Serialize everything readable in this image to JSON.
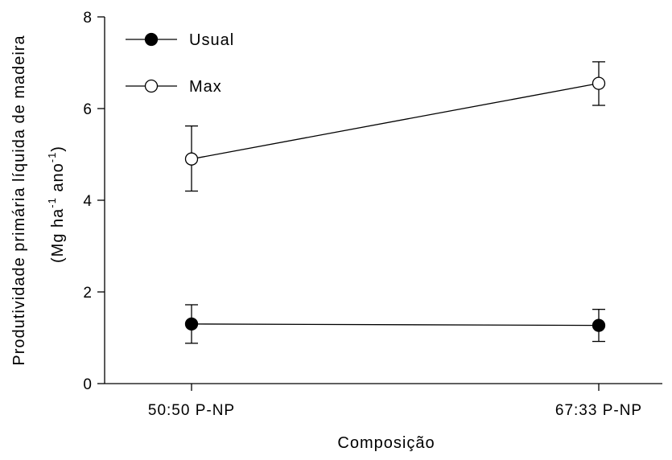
{
  "chart_data": {
    "type": "line",
    "categories": [
      "50:50 P-NP",
      "67:33 P-NP"
    ],
    "xlabel": "Composição",
    "ylabel_line1": "Produtividade primária líquida de madeira",
    "ylabel_line2": {
      "open": "(Mg ha",
      "sup1": "-1",
      "mid": " ano",
      "sup2": "-1",
      "close": ")"
    },
    "ylim": [
      0,
      8
    ],
    "yticks": [
      "0",
      "2",
      "4",
      "6",
      "8"
    ],
    "legend_position": "top-left",
    "series": [
      {
        "name": "Usual",
        "marker": "filled-circle",
        "values": [
          1.3,
          1.27
        ],
        "error_low": [
          0.88,
          0.92
        ],
        "error_high": [
          1.72,
          1.62
        ]
      },
      {
        "name": "Max",
        "marker": "open-circle",
        "values": [
          4.9,
          6.55
        ],
        "error_low": [
          4.2,
          6.07
        ],
        "error_high": [
          5.62,
          7.02
        ]
      }
    ],
    "colors": {
      "line": "#000000",
      "filled_marker": "#000000",
      "open_marker": "#ffffff"
    }
  }
}
